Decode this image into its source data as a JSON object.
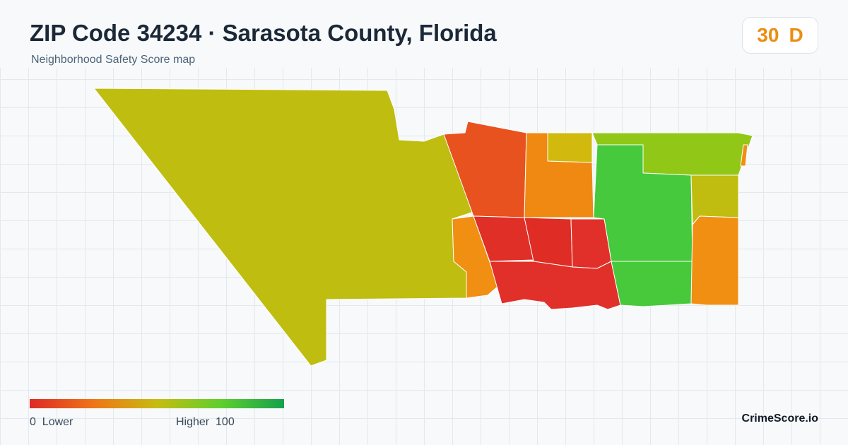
{
  "header": {
    "title": "ZIP Code 34234 · Sarasota County, Florida",
    "subtitle": "Neighborhood Safety Score map"
  },
  "score": {
    "value": "30",
    "grade": "D",
    "color": "#ec8d12"
  },
  "legend": {
    "low_value": "0",
    "low_label": "Lower",
    "high_label": "Higher",
    "high_value": "100",
    "color_stops": [
      "#dd2a26",
      "#ef7418",
      "#c6bc10",
      "#5fcf2f",
      "#15a04c"
    ]
  },
  "brand": "CrimeScore.io",
  "map": {
    "regions": [
      {
        "id": "west-large",
        "color": "#bfbd10"
      },
      {
        "id": "north-west-orange-red",
        "color": "#e8521e"
      },
      {
        "id": "north-orange",
        "color": "#f08912"
      },
      {
        "id": "north-yellow",
        "color": "#d2b90e"
      },
      {
        "id": "north-east-yellowgreen",
        "color": "#91c817"
      },
      {
        "id": "central-green",
        "color": "#46c93c"
      },
      {
        "id": "east-olive",
        "color": "#c0bd10"
      },
      {
        "id": "west-orange-small",
        "color": "#f08f12"
      },
      {
        "id": "center-red-west",
        "color": "#df2f26"
      },
      {
        "id": "center-red-mid",
        "color": "#df2d26"
      },
      {
        "id": "center-red-east",
        "color": "#e1302a"
      },
      {
        "id": "south-red",
        "color": "#e1302a"
      },
      {
        "id": "south-green",
        "color": "#48c93c"
      },
      {
        "id": "east-orange",
        "color": "#f08f12"
      },
      {
        "id": "far-east-sliver",
        "color": "#f08f12"
      }
    ]
  }
}
